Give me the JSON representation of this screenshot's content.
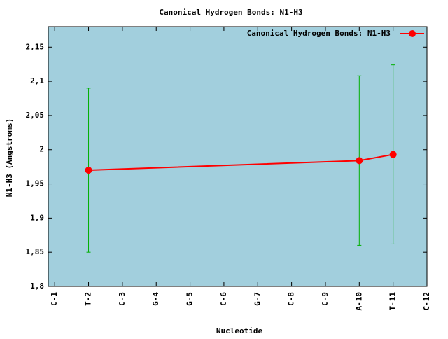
{
  "chart_data": {
    "type": "line",
    "title": "Canonical Hydrogen Bonds: N1-H3",
    "x_label": "Nucleotide",
    "y_label": "N1-H3 (Angstroms)",
    "xlim": [
      0.81,
      12
    ],
    "xticks": [
      {
        "value": 1,
        "label": "C-1"
      },
      {
        "value": 2,
        "label": "T-2"
      },
      {
        "value": 3,
        "label": "C-3"
      },
      {
        "value": 4,
        "label": "G-4"
      },
      {
        "value": 5,
        "label": "G-5"
      },
      {
        "value": 6,
        "label": "C-6"
      },
      {
        "value": 7,
        "label": "G-7"
      },
      {
        "value": 8,
        "label": "C-8"
      },
      {
        "value": 9,
        "label": "C-9"
      },
      {
        "value": 10,
        "label": "A-10"
      },
      {
        "value": 11,
        "label": "T-11"
      },
      {
        "value": 12,
        "label": "C-12"
      }
    ],
    "ylim": [
      1.8,
      2.18
    ],
    "yticks": [
      {
        "value": 1.8,
        "label": "1,8"
      },
      {
        "value": 1.85,
        "label": "1,85"
      },
      {
        "value": 1.9,
        "label": "1,9"
      },
      {
        "value": 1.95,
        "label": "1,95"
      },
      2,
      {
        "value": 2.05,
        "label": "2,05"
      },
      {
        "value": 2.1,
        "label": "2,1"
      },
      {
        "value": 2.15,
        "label": "2,15"
      }
    ],
    "background": "#a2cfdd",
    "legend": "top-right",
    "series": [
      {
        "name": "Canonical Hydrogen Bonds: N1-H3",
        "color": "#ff0000",
        "error_color": "#00b000",
        "x": [
          2,
          10,
          11
        ],
        "values": [
          1.97,
          1.984,
          1.993
        ],
        "errors": [
          0.12,
          0.124,
          0.131
        ]
      }
    ]
  }
}
